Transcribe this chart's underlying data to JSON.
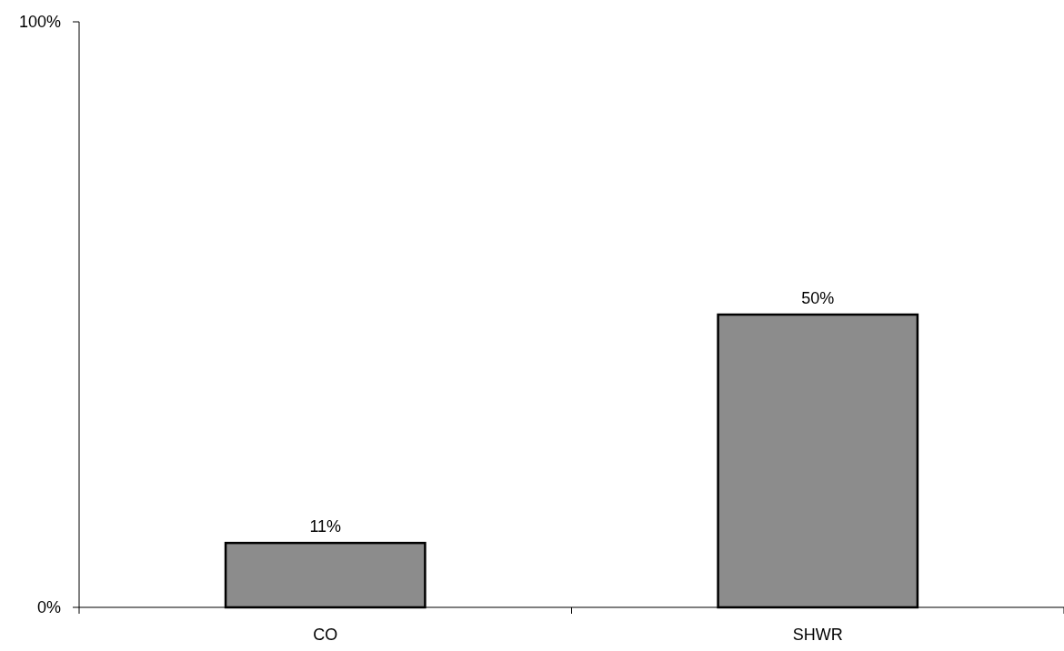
{
  "chart_data": {
    "type": "bar",
    "categories": [
      "CO",
      "SHWR"
    ],
    "values": [
      11,
      50
    ],
    "value_labels": [
      "11%",
      "50%"
    ],
    "color": "#8c8c8c",
    "ylim": [
      0,
      100
    ],
    "yticks": [
      {
        "value": 0,
        "label": "0%"
      },
      {
        "value": 100,
        "label": "100%"
      }
    ],
    "grid": false
  }
}
